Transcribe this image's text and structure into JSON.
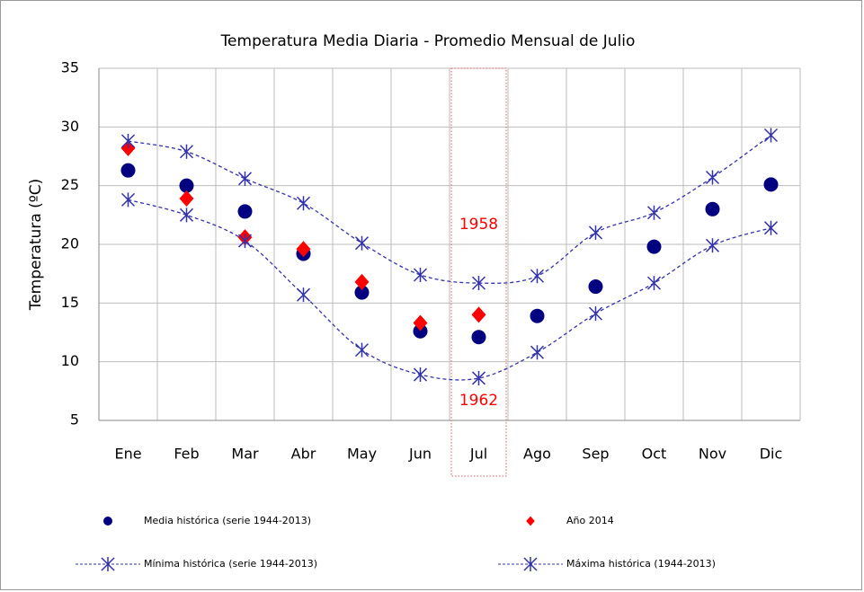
{
  "chart_data": {
    "type": "scatter",
    "title": "Temperatura Media Diaria - Promedio Mensual de Julio",
    "y_label": "Temperatura (ºC)",
    "categories": [
      "Ene",
      "Feb",
      "Mar",
      "Abr",
      "May",
      "Jun",
      "Jul",
      "Ago",
      "Sep",
      "Oct",
      "Nov",
      "Dic"
    ],
    "series": [
      {
        "name": "Media histórica (serie 1944-2013)",
        "color": "#000080",
        "marker": "circle",
        "line": false,
        "values": [
          26.3,
          25.0,
          22.8,
          19.2,
          15.9,
          12.6,
          12.1,
          13.9,
          16.4,
          19.8,
          23.0,
          25.1
        ]
      },
      {
        "name": "Año 2014",
        "color": "#ff0000",
        "marker": "diamond",
        "line": false,
        "values": [
          28.2,
          23.9,
          20.6,
          19.6,
          16.8,
          13.3,
          14.0,
          null,
          null,
          null,
          null,
          null
        ]
      },
      {
        "name": "Mínima histórica (serie 1944-2013)",
        "color": "#3333aa",
        "marker": "star",
        "line": true,
        "values": [
          23.8,
          22.5,
          20.3,
          15.7,
          11.0,
          8.9,
          8.6,
          10.8,
          14.1,
          16.7,
          19.9,
          21.4
        ]
      },
      {
        "name": "Máxima histórica (1944-2013)",
        "color": "#3333aa",
        "marker": "star",
        "line": true,
        "values": [
          28.8,
          27.9,
          25.6,
          23.5,
          20.1,
          17.4,
          16.7,
          17.3,
          21.0,
          22.7,
          25.7,
          29.3
        ]
      }
    ],
    "annotations": [
      "1958",
      "1962"
    ],
    "ylim": [
      5,
      35
    ],
    "yticks": [
      5,
      10,
      15,
      20,
      25,
      30,
      35
    ],
    "grid": true
  }
}
